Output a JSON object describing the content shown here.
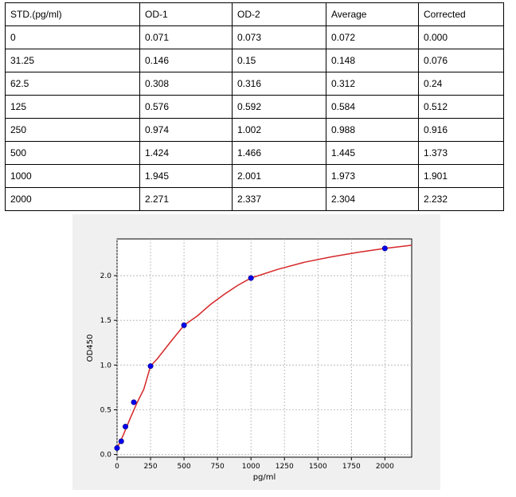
{
  "table": {
    "headers": [
      "STD.(pg/ml)",
      "OD-1",
      "OD-2",
      "Average",
      "Corrected"
    ],
    "rows": [
      [
        "0",
        "0.071",
        "0.073",
        "0.072",
        "0.000"
      ],
      [
        "31.25",
        "0.146",
        "0.15",
        "0.148",
        "0.076"
      ],
      [
        "62.5",
        "0.308",
        "0.316",
        "0.312",
        "0.24"
      ],
      [
        "125",
        "0.576",
        "0.592",
        "0.584",
        "0.512"
      ],
      [
        "250",
        "0.974",
        "1.002",
        "0.988",
        "0.916"
      ],
      [
        "500",
        "1.424",
        "1.466",
        "1.445",
        "1.373"
      ],
      [
        "1000",
        "1.945",
        "2.001",
        "1.973",
        "1.901"
      ],
      [
        "2000",
        "2.271",
        "2.337",
        "2.304",
        "2.232"
      ]
    ]
  },
  "chart_data": {
    "type": "scatter",
    "title": "",
    "xlabel": "pg/ml",
    "ylabel": "OD450",
    "xlim": [
      0,
      2200
    ],
    "ylim": [
      -0.03,
      2.41
    ],
    "xticks": [
      0,
      250,
      500,
      750,
      1000,
      1250,
      1500,
      1750,
      2000
    ],
    "xtick_labels": [
      "0",
      "250",
      "500",
      "750",
      "1000",
      "1250",
      "1500",
      "1750",
      "2000"
    ],
    "yticks": [
      0.0,
      0.5,
      1.0,
      1.5,
      2.0
    ],
    "ytick_labels": [
      "0.0",
      "0.5",
      "1.0",
      "1.5",
      "2.0"
    ],
    "grid": true,
    "series": [
      {
        "type": "scatter",
        "color": "#0000ee",
        "x": [
          0,
          31.25,
          62.5,
          125,
          250,
          500,
          1000,
          2000
        ],
        "y": [
          0.072,
          0.148,
          0.312,
          0.584,
          0.988,
          1.445,
          1.973,
          2.304
        ]
      },
      {
        "type": "line",
        "color": "#d62728",
        "x": [
          0,
          25,
          50,
          75,
          100,
          150,
          200,
          250,
          300,
          400,
          500,
          600,
          700,
          800,
          900,
          1000,
          1200,
          1400,
          1600,
          1800,
          2000,
          2200
        ],
        "y": [
          0.072,
          0.145,
          0.23,
          0.32,
          0.41,
          0.58,
          0.73,
          0.988,
          1.07,
          1.26,
          1.445,
          1.55,
          1.68,
          1.79,
          1.89,
          1.973,
          2.07,
          2.15,
          2.21,
          2.26,
          2.304,
          2.34
        ]
      }
    ]
  },
  "colors": {
    "panel_bg": "#f0f0f0",
    "curve": "#d62728",
    "points": "#0000ee"
  }
}
